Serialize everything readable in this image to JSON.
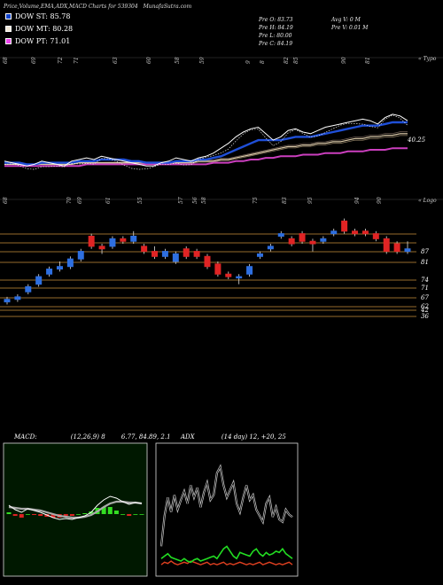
{
  "header": {
    "title": "Price,Volume,EMA,ADX,MACD Charts for 539304",
    "site": "MunafaSutra.com"
  },
  "legend": [
    {
      "label": "DOW ST: 85.78",
      "color": "#1144cc"
    },
    {
      "label": "DOW MT: 80.28",
      "color": "#f0e8d8"
    },
    {
      "label": "DOW PT: 71.01",
      "color": "#ee44ee"
    }
  ],
  "stats": {
    "col1": [
      "Pre  O: 83.73",
      "Pre  H: 84.19",
      "Pre  L: 80.00",
      "Pre  C: 84.19"
    ],
    "col2": [
      "Avg V: 0  M",
      "Pre  V: 0.01 M"
    ]
  },
  "panel_labels": {
    "top_right": "« Typo",
    "mid_right": "« Logo",
    "ema_value": "40.25"
  },
  "chart_data": [
    {
      "type": "line",
      "name": "ema-panel",
      "top_ticks": [
        "68",
        "69",
        "72",
        "71",
        "63",
        "60",
        "58",
        "59",
        "9",
        "8",
        "82",
        "85",
        "90",
        "81"
      ],
      "series": [
        {
          "name": "price",
          "values": [
            55,
            54,
            53,
            52,
            53,
            55,
            54,
            53,
            52,
            55,
            56,
            57,
            56,
            58,
            57,
            56,
            55,
            54,
            53,
            52,
            52,
            54,
            55,
            57,
            56,
            55,
            57,
            58,
            60,
            63,
            66,
            70,
            73,
            75,
            76,
            72,
            68,
            70,
            74,
            75,
            73,
            72,
            74,
            76,
            77,
            78,
            79,
            80,
            81,
            80,
            78,
            82,
            84,
            83,
            80
          ]
        },
        {
          "name": "ema-short",
          "values": [
            54,
            54,
            54,
            53,
            53,
            54,
            54,
            54,
            54,
            54,
            55,
            55,
            55,
            56,
            56,
            56,
            56,
            55,
            55,
            54,
            54,
            54,
            54,
            55,
            55,
            55,
            56,
            56,
            57,
            58,
            60,
            62,
            64,
            66,
            68,
            68,
            68,
            68,
            69,
            70,
            70,
            70,
            71,
            72,
            73,
            74,
            75,
            76,
            77,
            77,
            77,
            78,
            79,
            79,
            79
          ]
        },
        {
          "name": "ema-mid",
          "values": [
            53,
            53,
            53,
            53,
            53,
            53,
            53,
            53,
            53,
            53,
            54,
            54,
            54,
            54,
            54,
            54,
            54,
            54,
            54,
            54,
            54,
            54,
            54,
            54,
            54,
            54,
            55,
            55,
            55,
            56,
            56,
            57,
            58,
            59,
            60,
            61,
            62,
            63,
            64,
            64,
            65,
            65,
            66,
            66,
            67,
            67,
            68,
            69,
            69,
            70,
            70,
            71,
            71,
            72,
            72
          ]
        },
        {
          "name": "ema-long",
          "values": [
            52,
            52,
            52,
            52,
            52,
            52,
            52,
            52,
            52,
            52,
            52,
            53,
            53,
            53,
            53,
            53,
            53,
            53,
            53,
            53,
            53,
            53,
            53,
            53,
            53,
            53,
            53,
            53,
            54,
            54,
            54,
            55,
            55,
            56,
            56,
            57,
            57,
            58,
            58,
            58,
            59,
            59,
            59,
            60,
            60,
            60,
            61,
            61,
            61,
            62,
            62,
            62,
            63,
            63,
            63
          ]
        }
      ]
    },
    {
      "type": "candlestick",
      "name": "price-panel",
      "top_ticks": [
        "68",
        "70",
        "69",
        "61",
        "55",
        "57",
        "56",
        "58",
        "75",
        "83",
        "95",
        "94",
        "90"
      ],
      "levels": [
        "87",
        "81",
        "74",
        "71",
        "67",
        "62",
        "42",
        "36"
      ],
      "candles": [
        {
          "o": 60,
          "c": 61,
          "h": 62,
          "l": 59
        },
        {
          "o": 61,
          "c": 62,
          "h": 63,
          "l": 60
        },
        {
          "o": 64,
          "c": 66,
          "h": 67,
          "l": 63
        },
        {
          "o": 67,
          "c": 70,
          "h": 71,
          "l": 66
        },
        {
          "o": 71,
          "c": 73,
          "h": 74,
          "l": 70
        },
        {
          "o": 73,
          "c": 74,
          "h": 76,
          "l": 72
        },
        {
          "o": 74,
          "c": 77,
          "h": 78,
          "l": 73
        },
        {
          "o": 77,
          "c": 80,
          "h": 81,
          "l": 76
        },
        {
          "o": 86,
          "c": 82,
          "h": 87,
          "l": 81
        },
        {
          "o": 82,
          "c": 81,
          "h": 83,
          "l": 79
        },
        {
          "o": 82,
          "c": 85,
          "h": 86,
          "l": 81
        },
        {
          "o": 85,
          "c": 84,
          "h": 86,
          "l": 83
        },
        {
          "o": 84,
          "c": 86,
          "h": 88,
          "l": 83
        },
        {
          "o": 82,
          "c": 80,
          "h": 83,
          "l": 79
        },
        {
          "o": 80,
          "c": 78,
          "h": 82,
          "l": 77
        },
        {
          "o": 78,
          "c": 80,
          "h": 81,
          "l": 77
        },
        {
          "o": 76,
          "c": 79,
          "h": 80,
          "l": 75
        },
        {
          "o": 81,
          "c": 78,
          "h": 82,
          "l": 77
        },
        {
          "o": 80,
          "c": 78,
          "h": 81,
          "l": 77
        },
        {
          "o": 78,
          "c": 74,
          "h": 79,
          "l": 73
        },
        {
          "o": 75,
          "c": 71,
          "h": 76,
          "l": 70
        },
        {
          "o": 71,
          "c": 70,
          "h": 72,
          "l": 69
        },
        {
          "o": 70,
          "c": 70,
          "h": 71,
          "l": 67
        },
        {
          "o": 71,
          "c": 74,
          "h": 75,
          "l": 70
        },
        {
          "o": 78,
          "c": 79,
          "h": 80,
          "l": 77
        },
        {
          "o": 81,
          "c": 82,
          "h": 83,
          "l": 80
        },
        {
          "o": 86,
          "c": 87,
          "h": 88,
          "l": 85
        },
        {
          "o": 85,
          "c": 83,
          "h": 86,
          "l": 82
        },
        {
          "o": 87,
          "c": 84,
          "h": 88,
          "l": 83
        },
        {
          "o": 84,
          "c": 83,
          "h": 85,
          "l": 80
        },
        {
          "o": 84,
          "c": 85,
          "h": 86,
          "l": 83
        },
        {
          "o": 87,
          "c": 88,
          "h": 89,
          "l": 86
        },
        {
          "o": 92,
          "c": 88,
          "h": 93,
          "l": 87
        },
        {
          "o": 88,
          "c": 87,
          "h": 89,
          "l": 86
        },
        {
          "o": 88,
          "c": 87,
          "h": 89,
          "l": 86
        },
        {
          "o": 87,
          "c": 85,
          "h": 88,
          "l": 84
        },
        {
          "o": 85,
          "c": 80,
          "h": 86,
          "l": 79
        },
        {
          "o": 83,
          "c": 80,
          "h": 84,
          "l": 79
        },
        {
          "o": 80,
          "c": 81,
          "h": 84,
          "l": 79
        }
      ]
    },
    {
      "type": "line",
      "name": "macd-panel",
      "title": "MACD",
      "params": "(12,26,9) 8",
      "value_text": "6.77, 84.89, 2.1",
      "series": [
        {
          "name": "macd",
          "values": [
            1,
            0.5,
            0.2,
            0.6,
            0.4,
            0.2,
            -0.1,
            -0.4,
            -0.6,
            -0.5,
            -0.6,
            -0.4,
            -0.2,
            0.2,
            1,
            1.6,
            2,
            1.8,
            1.4,
            1.1,
            1.3,
            1.2
          ]
        },
        {
          "name": "signal",
          "values": [
            0.8,
            0.7,
            0.6,
            0.6,
            0.5,
            0.4,
            0.2,
            0,
            -0.2,
            -0.3,
            -0.4,
            -0.4,
            -0.3,
            -0.1,
            0.3,
            0.8,
            1.2,
            1.4,
            1.4,
            1.3,
            1.3,
            1.2
          ]
        }
      ],
      "histogram": [
        0.2,
        -0.2,
        -0.4,
        0,
        -0.1,
        -0.2,
        -0.3,
        -0.4,
        -0.4,
        -0.2,
        -0.2,
        0,
        0.1,
        0.3,
        0.7,
        0.8,
        0.8,
        0.4,
        0,
        -0.2,
        0,
        0
      ]
    },
    {
      "type": "line",
      "name": "adx-panel",
      "title": "ADX",
      "params": "(14 day) 12, +20, 25",
      "series": [
        {
          "name": "adx",
          "values": [
            20,
            45,
            60,
            48,
            62,
            50,
            58,
            65,
            55,
            70,
            60,
            68,
            52,
            64,
            72,
            58,
            62,
            80,
            85,
            70,
            60,
            66,
            72,
            55,
            48,
            60,
            70,
            58,
            62,
            50,
            45,
            40,
            55,
            60,
            44,
            52,
            42,
            40,
            50,
            46,
            44
          ]
        },
        {
          "name": "di-plus",
          "values": [
            10,
            12,
            14,
            11,
            10,
            9,
            8,
            10,
            8,
            7,
            9,
            10,
            8,
            9,
            10,
            11,
            12,
            10,
            14,
            18,
            20,
            16,
            12,
            10,
            15,
            14,
            13,
            12,
            16,
            18,
            14,
            12,
            15,
            13,
            14,
            16,
            15,
            18,
            14,
            12,
            10
          ]
        },
        {
          "name": "di-minus",
          "values": [
            5,
            7,
            6,
            8,
            6,
            5,
            6,
            7,
            6,
            8,
            7,
            6,
            5,
            6,
            7,
            5,
            6,
            5,
            6,
            7,
            5,
            6,
            5,
            6,
            7,
            6,
            5,
            6,
            5,
            6,
            7,
            5,
            6,
            7,
            6,
            5,
            6,
            5,
            6,
            7,
            5
          ]
        }
      ]
    }
  ]
}
